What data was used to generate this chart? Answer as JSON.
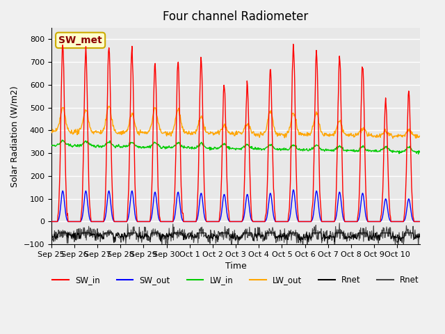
{
  "title": "Four channel Radiometer",
  "xlabel": "Time",
  "ylabel": "Solar Radiation (W/m2)",
  "annotation": "SW_met",
  "ylim": [
    -100,
    850
  ],
  "yticks": [
    -100,
    0,
    100,
    200,
    300,
    400,
    500,
    600,
    700,
    800
  ],
  "xtick_labels": [
    "Sep 25",
    "Sep 26",
    "Sep 27",
    "Sep 28",
    "Sep 29",
    "Sep 30",
    "Oct 1",
    "Oct 2",
    "Oct 3",
    "Oct 4",
    "Oct 5",
    "Oct 6",
    "Oct 7",
    "Oct 8",
    "Oct 9",
    "Oct 10"
  ],
  "background_color": "#f0f0f0",
  "plot_bg_color": "#e8e8e8",
  "grid_color": "#ffffff",
  "colors": {
    "SW_in": "#ff0000",
    "SW_out": "#0000ff",
    "LW_in": "#00cc00",
    "LW_out": "#ffa500",
    "Rnet_black": "#000000",
    "Rnet_dark": "#444444"
  },
  "n_days": 16,
  "lw_in_base": 330,
  "lw_out_base": 395
}
